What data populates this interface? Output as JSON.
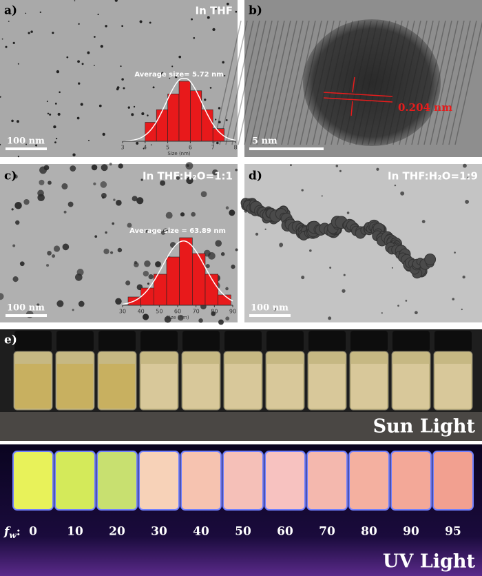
{
  "panels": [
    {
      "label": "a)",
      "caption": "In THF",
      "scale": "100 nm",
      "histogram": {
        "title": "Average size= 5.72 nm",
        "xlabel": "Size (nm)",
        "xlim": [
          3,
          8
        ],
        "xticks": [
          3,
          4,
          5,
          6,
          7,
          8
        ],
        "bins": [
          4,
          4.5,
          5,
          5.5,
          6,
          6.5,
          7,
          7.5
        ],
        "counts": [
          30,
          50,
          75,
          95,
          80,
          50,
          20
        ],
        "color": "#e8191b"
      }
    },
    {
      "label": "b)",
      "scale": "5 nm",
      "annotation": "0.204 nm"
    },
    {
      "label": "c)",
      "caption": "In THF:H₂O=1:1",
      "scale": "100 nm",
      "histogram": {
        "title": "Average size = 63.89 nm",
        "xlabel": "Size (nm)",
        "xlim": [
          30,
          90
        ],
        "xticks": [
          30,
          40,
          50,
          60,
          70,
          80,
          90
        ],
        "bins": [
          33,
          40,
          47,
          54,
          61,
          68,
          75,
          82,
          89
        ],
        "counts": [
          12,
          25,
          45,
          70,
          98,
          75,
          45,
          15
        ],
        "color": "#e8191b"
      }
    },
    {
      "label": "d)",
      "caption": "In THF:H₂O=1:9",
      "scale": "100 nm"
    }
  ],
  "photos": {
    "label": "e)",
    "sun": "Sun Light",
    "uv": "UV Light",
    "fw_symbol": "f",
    "fw_subscript": "w",
    "fw_colon": ":",
    "fractions": [
      0,
      10,
      20,
      30,
      40,
      50,
      60,
      70,
      80,
      90,
      95
    ]
  }
}
